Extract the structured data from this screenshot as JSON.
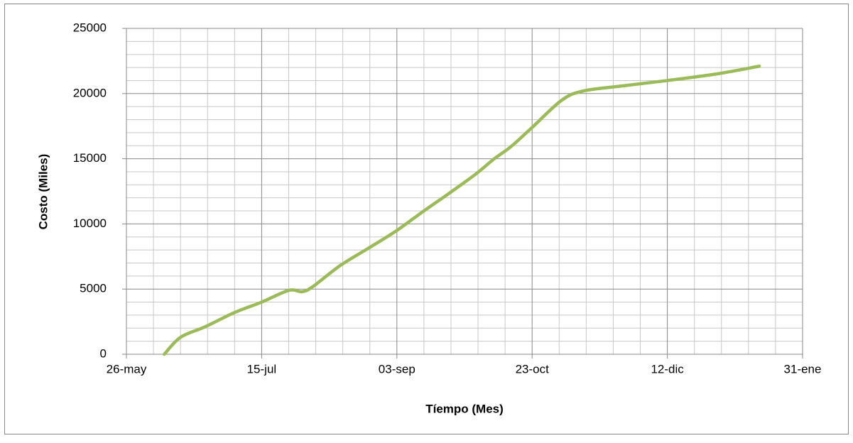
{
  "chart_data": {
    "type": "line",
    "xlabel": "Tíempo (Mes)",
    "ylabel": "Costo (Miles)",
    "x": [
      14,
      20,
      29,
      40,
      50,
      60,
      65,
      69,
      79,
      90,
      100,
      110,
      119,
      129,
      136,
      142,
      150,
      161,
      169,
      184,
      200,
      218,
      234
    ],
    "series": [
      {
        "color": "#9bbb59",
        "values": [
          0,
          1300,
          2100,
          3200,
          4000,
          4900,
          4800,
          5200,
          6800,
          8200,
          9500,
          11000,
          12300,
          13800,
          15000,
          15900,
          17400,
          19500,
          20200,
          20600,
          21000,
          21500,
          22100
        ]
      }
    ],
    "xlim": [
      0,
      250
    ],
    "xticks": [
      {
        "value": 0,
        "label": "26-may"
      },
      {
        "value": 50,
        "label": "15-jul"
      },
      {
        "value": 100,
        "label": "03-sep"
      },
      {
        "value": 150,
        "label": "23-oct"
      },
      {
        "value": 200,
        "label": "12-dic"
      },
      {
        "value": 250,
        "label": "31-ene"
      }
    ],
    "ylim": [
      0,
      25000
    ],
    "yticks": [
      0,
      5000,
      10000,
      15000,
      20000,
      25000
    ],
    "grid": true,
    "minor_grid": true,
    "smooth": true
  }
}
